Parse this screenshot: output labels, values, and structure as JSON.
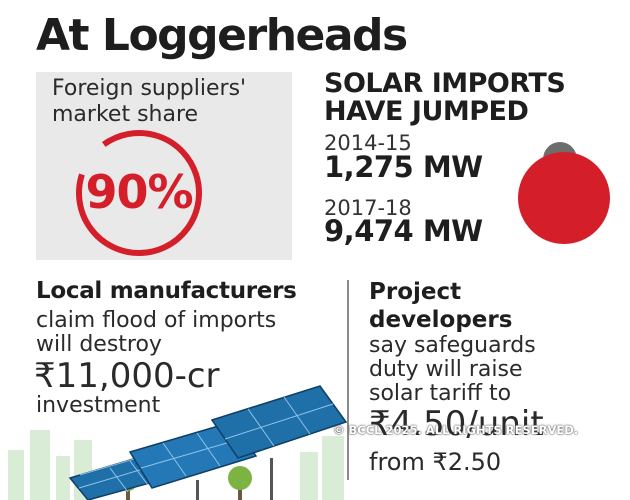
{
  "title": "At Loggerheads",
  "market_share": {
    "label_line1": "Foreign suppliers'",
    "label_line2": "market share",
    "value_text": "90%",
    "value": 90
  },
  "imports": {
    "heading_line1": "SOLAR IMPORTS",
    "heading_line2": "HAVE JUMPED"
  },
  "local": {
    "heading": "Local manufacturers",
    "line1": "claim flood of imports",
    "line2": "will destroy",
    "amount": "₹11,000-cr",
    "line3": "investment"
  },
  "developers": {
    "heading_line1": "Project",
    "heading_line2": "developers",
    "line1": "say safeguards",
    "line2": "duty will raise",
    "line3": "solar tariff to",
    "amount": "₹4.50/unit",
    "line4": "from ₹2.50"
  },
  "copyright": "© BCCL 2025. ALL RIGHTS RESERVED.",
  "colors": {
    "accent_red": "#d41f2b",
    "grey_bubble": "#6d6d6d",
    "box_bg": "#e9e9e9",
    "panel_blue": "#1f6fa8",
    "tree_green": "#7cb342"
  },
  "icons": [
    "solar-panel-icon",
    "tree-icon",
    "city-skyline-icon"
  ],
  "chart_data": [
    {
      "type": "pie",
      "title": "",
      "categories": [
        "Foreign suppliers"
      ],
      "values": [
        90
      ],
      "unit": "%"
    },
    {
      "type": "bubble",
      "title": "",
      "categories": [
        "2014-15",
        "2017-18"
      ],
      "values": [
        1275,
        9474
      ],
      "value_labels": [
        "1,275 MW",
        "9,474 MW"
      ],
      "unit": "MW"
    }
  ]
}
